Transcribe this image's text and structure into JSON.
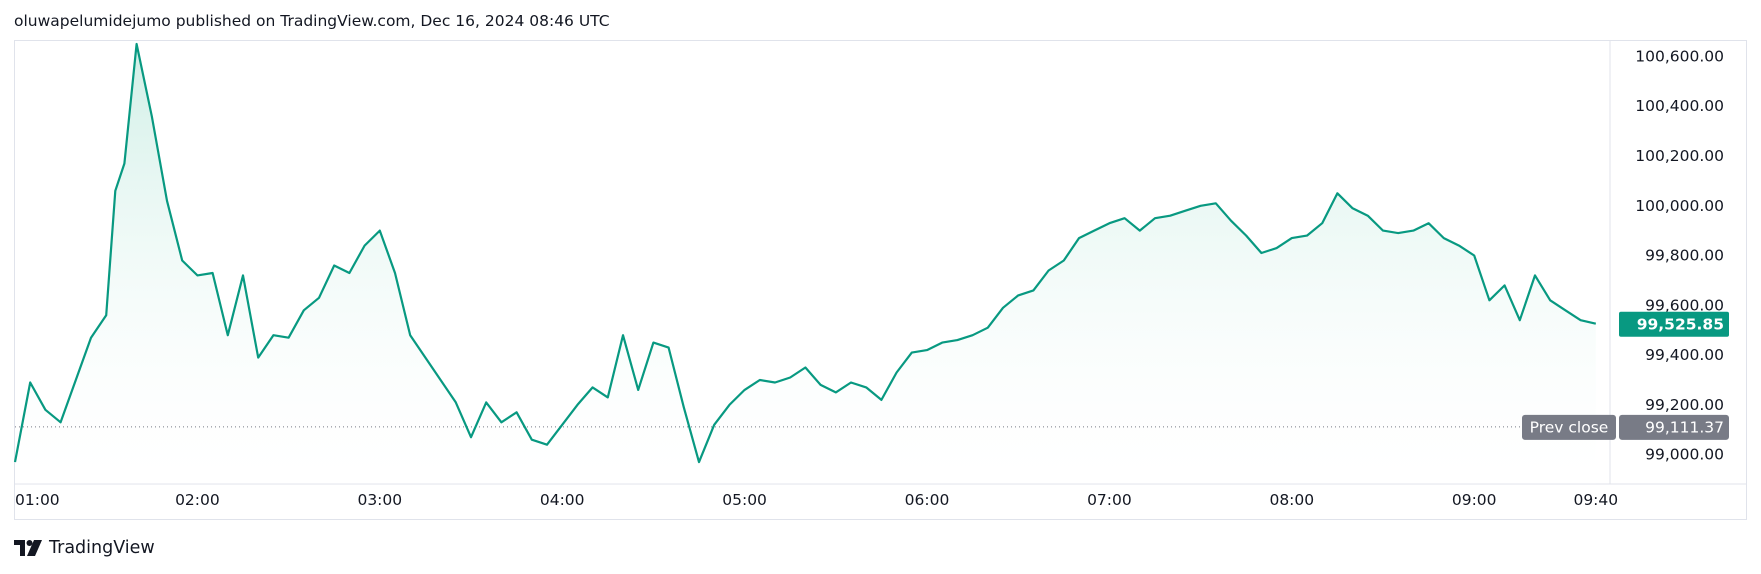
{
  "header": {
    "publisher_line": "oluwapelumidejumo published on TradingView.com, Dec 16, 2024 08:46 UTC"
  },
  "footer": {
    "brand": "TradingView",
    "logo_icon": "tradingview-logo-icon"
  },
  "colors": {
    "line": "#089981",
    "fill_top": "#cdeee5",
    "price_badge": "#089981",
    "prev_close_badge": "#787b86",
    "axis_text": "#131722"
  },
  "chart_data": {
    "type": "area",
    "ylim": [
      98890,
      100650
    ],
    "y_ticks": [
      {
        "value": 100600,
        "label": "100,600.00"
      },
      {
        "value": 100400,
        "label": "100,400.00"
      },
      {
        "value": 100200,
        "label": "100,200.00"
      },
      {
        "value": 100000,
        "label": "100,000.00"
      },
      {
        "value": 99800,
        "label": "99,800.00"
      },
      {
        "value": 99600,
        "label": "99,600.00"
      },
      {
        "value": 99400,
        "label": "99,400.00"
      },
      {
        "value": 99200,
        "label": "99,200.00"
      },
      {
        "value": 99000,
        "label": "99,000.00"
      }
    ],
    "x_ticks": [
      {
        "time": "01:00",
        "label": "01:00"
      },
      {
        "time": "02:00",
        "label": "02:00"
      },
      {
        "time": "03:00",
        "label": "03:00"
      },
      {
        "time": "04:00",
        "label": "04:00"
      },
      {
        "time": "05:00",
        "label": "05:00"
      },
      {
        "time": "06:00",
        "label": "06:00"
      },
      {
        "time": "07:00",
        "label": "07:00"
      },
      {
        "time": "08:00",
        "label": "08:00"
      },
      {
        "time": "09:00",
        "label": "09:00"
      },
      {
        "time": "09:40",
        "label": "09:40"
      }
    ],
    "xlim": [
      "01:00",
      "09:45"
    ],
    "last_price": {
      "value": 99525.85,
      "label": "99,525.85"
    },
    "prev_close": {
      "value": 99111.37,
      "label": "99,111.37",
      "text": "Prev close"
    },
    "series": [
      {
        "x": [
          "01:00",
          "01:05",
          "01:10",
          "01:15",
          "01:20",
          "01:25",
          "01:30",
          "01:33",
          "01:36",
          "01:40",
          "01:45",
          "01:50",
          "01:55",
          "02:00",
          "02:05",
          "02:10",
          "02:15",
          "02:20",
          "02:25",
          "02:30",
          "02:35",
          "02:40",
          "02:45",
          "02:50",
          "02:55",
          "03:00",
          "03:05",
          "03:10",
          "03:15",
          "03:20",
          "03:25",
          "03:30",
          "03:35",
          "03:40",
          "03:45",
          "03:50",
          "03:55",
          "04:00",
          "04:05",
          "04:10",
          "04:15",
          "04:20",
          "04:25",
          "04:30",
          "04:35",
          "04:40",
          "04:45",
          "04:50",
          "04:55",
          "05:00",
          "05:05",
          "05:10",
          "05:15",
          "05:20",
          "05:25",
          "05:30",
          "05:35",
          "05:40",
          "05:45",
          "05:50",
          "05:55",
          "06:00",
          "06:05",
          "06:10",
          "06:15",
          "06:20",
          "06:25",
          "06:30",
          "06:35",
          "06:40",
          "06:45",
          "06:50",
          "06:55",
          "07:00",
          "07:05",
          "07:10",
          "07:15",
          "07:20",
          "07:25",
          "07:30",
          "07:35",
          "07:40",
          "07:45",
          "07:50",
          "07:55",
          "08:00",
          "08:05",
          "08:10",
          "08:15",
          "08:20",
          "08:25",
          "08:30",
          "08:35",
          "08:40",
          "08:45",
          "08:50",
          "08:55",
          "09:00",
          "09:05",
          "09:10",
          "09:15",
          "09:20",
          "09:25",
          "09:30",
          "09:35",
          "09:40"
        ],
        "values": [
          98970,
          99290,
          99180,
          99130,
          99300,
          99470,
          99560,
          100060,
          100170,
          100650,
          100360,
          100020,
          99780,
          99720,
          99730,
          99480,
          99720,
          99390,
          99480,
          99470,
          99580,
          99630,
          99760,
          99730,
          99840,
          99900,
          99730,
          99480,
          99390,
          99300,
          99210,
          99070,
          99210,
          99130,
          99170,
          99060,
          99040,
          99120,
          99200,
          99270,
          99230,
          99480,
          99260,
          99450,
          99430,
          99190,
          98970,
          99120,
          99200,
          99260,
          99300,
          99290,
          99310,
          99350,
          99280,
          99250,
          99290,
          99270,
          99220,
          99330,
          99410,
          99420,
          99450,
          99460,
          99480,
          99510,
          99590,
          99640,
          99660,
          99740,
          99780,
          99870,
          99900,
          99930,
          99950,
          99900,
          99950,
          99960,
          99980,
          100000,
          100010,
          99940,
          99880,
          99810,
          99830,
          99870,
          99880,
          99930,
          100050,
          99990,
          99960,
          99900,
          99890,
          99900,
          99930,
          99870,
          99840,
          99800,
          99620,
          99680,
          99540,
          99720,
          99620,
          99580,
          99540,
          99526
        ]
      }
    ]
  }
}
